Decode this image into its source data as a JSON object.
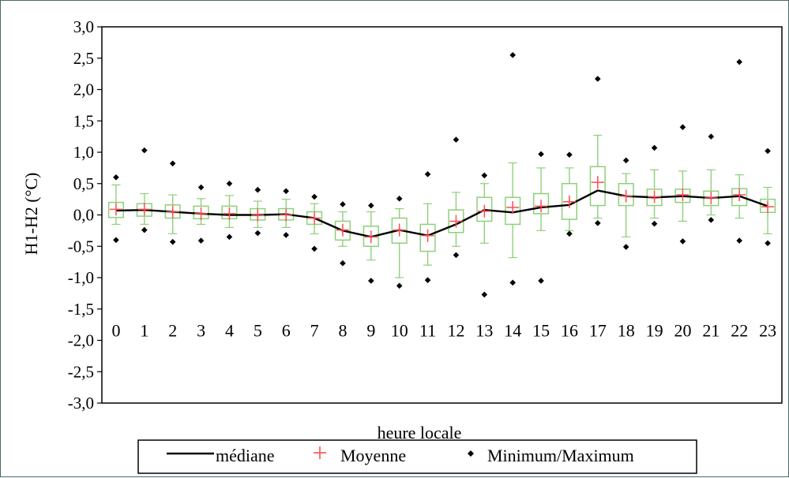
{
  "chart_data": {
    "type": "box",
    "xlabel": "heure locale",
    "ylabel": "H1-H2 (°C)",
    "ylim": [
      -3.0,
      3.0
    ],
    "yticks": [
      "3,0",
      "2,5",
      "2,0",
      "1,5",
      "1,0",
      "0,5",
      "0,0",
      "-0,5",
      "-1,0",
      "-1,5",
      "-2,0",
      "-2,5",
      "-3,0"
    ],
    "ytick_values": [
      3.0,
      2.5,
      2.0,
      1.5,
      1.0,
      0.5,
      0.0,
      -0.5,
      -1.0,
      -1.5,
      -2.0,
      -2.5,
      -3.0
    ],
    "categories": [
      "0",
      "1",
      "2",
      "3",
      "4",
      "5",
      "6",
      "7",
      "8",
      "9",
      "10",
      "11",
      "12",
      "13",
      "14",
      "15",
      "16",
      "17",
      "18",
      "19",
      "20",
      "21",
      "22",
      "23"
    ],
    "colors": {
      "median_line": "#000000",
      "mean_marker": "#ff4d4d",
      "box": "#8fd07a",
      "extreme_marker": "#000000",
      "frame": "#4a6a6a"
    },
    "series": [
      {
        "name": "médiane",
        "values": [
          0.07,
          0.08,
          0.05,
          0.02,
          0.0,
          0.0,
          0.01,
          -0.05,
          -0.25,
          -0.35,
          -0.24,
          -0.33,
          -0.15,
          0.08,
          0.04,
          0.12,
          0.16,
          0.39,
          0.3,
          0.28,
          0.3,
          0.27,
          0.3,
          0.14
        ]
      },
      {
        "name": "Moyenne",
        "values": [
          0.09,
          0.09,
          0.05,
          0.02,
          0.02,
          0.0,
          0.0,
          -0.05,
          -0.24,
          -0.35,
          -0.24,
          -0.33,
          -0.1,
          0.06,
          0.12,
          0.14,
          0.21,
          0.52,
          0.3,
          0.29,
          0.32,
          0.27,
          0.32,
          0.13
        ]
      },
      {
        "name": "Minimum",
        "values": [
          -0.4,
          -0.24,
          -0.43,
          -0.41,
          -0.35,
          -0.29,
          -0.32,
          -0.54,
          -0.77,
          -1.05,
          -1.13,
          -1.04,
          -0.64,
          -1.27,
          -1.08,
          -1.05,
          -0.3,
          -0.13,
          -0.51,
          -0.14,
          -0.42,
          -0.08,
          -0.41,
          -0.45
        ]
      },
      {
        "name": "Maximum",
        "values": [
          0.6,
          1.03,
          0.82,
          0.44,
          0.5,
          0.4,
          0.38,
          0.29,
          0.17,
          0.15,
          0.26,
          0.65,
          1.2,
          0.63,
          2.55,
          0.97,
          0.96,
          2.17,
          0.87,
          1.07,
          1.4,
          1.25,
          2.44,
          1.02
        ]
      }
    ],
    "quartiles": {
      "q1": [
        -0.04,
        -0.02,
        -0.05,
        -0.06,
        -0.06,
        -0.08,
        -0.08,
        -0.15,
        -0.4,
        -0.5,
        -0.45,
        -0.58,
        -0.28,
        -0.1,
        -0.15,
        0.02,
        -0.07,
        0.15,
        0.15,
        0.15,
        0.2,
        0.15,
        0.15,
        0.04
      ],
      "q3": [
        0.2,
        0.18,
        0.16,
        0.14,
        0.14,
        0.1,
        0.1,
        0.05,
        -0.1,
        -0.18,
        -0.05,
        -0.15,
        0.08,
        0.28,
        0.28,
        0.34,
        0.5,
        0.77,
        0.5,
        0.41,
        0.41,
        0.38,
        0.42,
        0.25
      ]
    },
    "whiskers": {
      "low": [
        -0.15,
        -0.15,
        -0.3,
        -0.15,
        -0.2,
        -0.2,
        -0.2,
        -0.3,
        -0.5,
        -0.72,
        -1.0,
        -0.8,
        -0.5,
        -0.45,
        -0.68,
        -0.25,
        -0.25,
        -0.05,
        -0.35,
        -0.05,
        -0.1,
        0.0,
        -0.05,
        -0.3
      ],
      "high": [
        0.48,
        0.34,
        0.32,
        0.26,
        0.31,
        0.22,
        0.25,
        0.18,
        0.05,
        0.05,
        0.1,
        0.18,
        0.36,
        0.5,
        0.83,
        0.75,
        0.75,
        1.27,
        0.66,
        0.72,
        0.7,
        0.72,
        0.64,
        0.44
      ]
    },
    "legend": {
      "position": "bottom",
      "median_label": "médiane",
      "mean_label": "Moyenne",
      "extreme_label": "Minimum/Maximum"
    },
    "grid": false
  }
}
